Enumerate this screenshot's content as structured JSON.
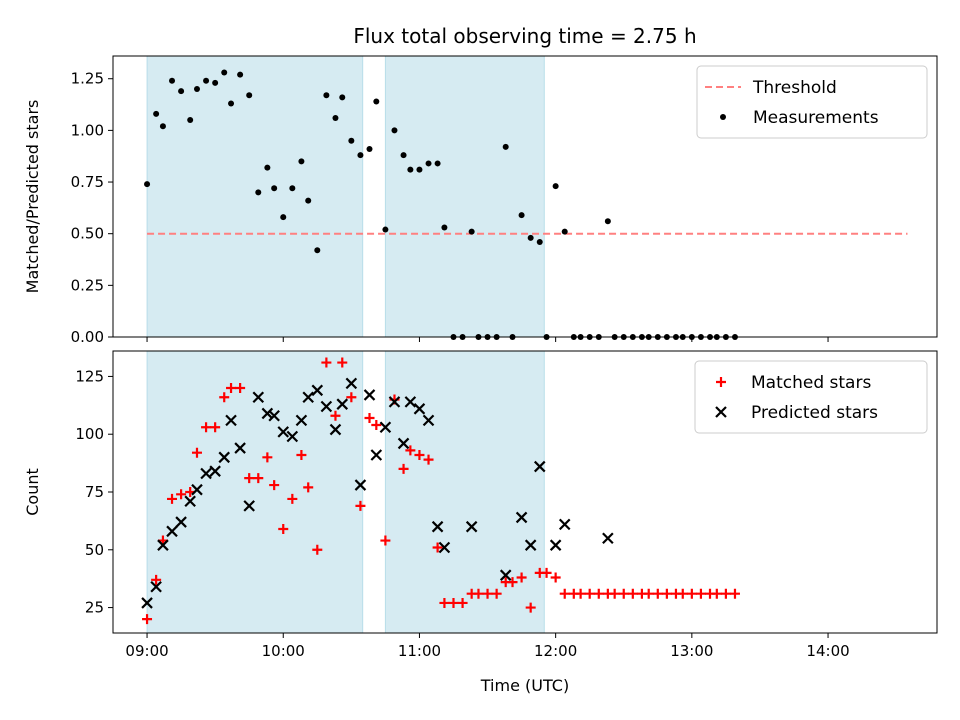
{
  "chart_data": [
    {
      "type": "scatter",
      "title": "Flux total observing time = 2.75 h",
      "xlabel": "",
      "ylabel": "Matched/Predicted stars",
      "xlim": [
        "08:45",
        "14:48"
      ],
      "ylim": [
        0.0,
        1.36
      ],
      "yticks": [
        0.0,
        0.25,
        0.5,
        0.75,
        1.0,
        1.25
      ],
      "ytick_labels": [
        "0.00",
        "0.25",
        "0.50",
        "0.75",
        "1.00",
        "1.25"
      ],
      "xticks": [
        "09:00",
        "10:00",
        "11:00",
        "12:00",
        "13:00",
        "14:00"
      ],
      "show_xtick_labels": false,
      "legend_position": "top-right",
      "shaded_intervals": [
        [
          "09:00",
          "10:35"
        ],
        [
          "10:45",
          "11:55"
        ]
      ],
      "colors": {
        "shade": "#add8e6",
        "threshold": "#ff8080",
        "measurements": "#000000"
      },
      "threshold": {
        "name": "Threshold",
        "value": 0.5,
        "x_range": [
          "09:00",
          "14:35"
        ]
      },
      "series": [
        {
          "name": "Measurements",
          "marker": "dot",
          "points": [
            [
              "09:00",
              0.74
            ],
            [
              "09:04",
              1.08
            ],
            [
              "09:07",
              1.02
            ],
            [
              "09:11",
              1.24
            ],
            [
              "09:15",
              1.19
            ],
            [
              "09:19",
              1.05
            ],
            [
              "09:22",
              1.2
            ],
            [
              "09:26",
              1.24
            ],
            [
              "09:30",
              1.23
            ],
            [
              "09:34",
              1.28
            ],
            [
              "09:37",
              1.13
            ],
            [
              "09:41",
              1.27
            ],
            [
              "09:45",
              1.17
            ],
            [
              "09:49",
              0.7
            ],
            [
              "09:53",
              0.82
            ],
            [
              "09:56",
              0.72
            ],
            [
              "10:00",
              0.58
            ],
            [
              "10:04",
              0.72
            ],
            [
              "10:08",
              0.85
            ],
            [
              "10:11",
              0.66
            ],
            [
              "10:15",
              0.42
            ],
            [
              "10:19",
              1.17
            ],
            [
              "10:23",
              1.06
            ],
            [
              "10:26",
              1.16
            ],
            [
              "10:30",
              0.95
            ],
            [
              "10:34",
              0.88
            ],
            [
              "10:38",
              0.91
            ],
            [
              "10:41",
              1.14
            ],
            [
              "10:45",
              0.52
            ],
            [
              "10:49",
              1.0
            ],
            [
              "10:53",
              0.88
            ],
            [
              "10:56",
              0.81
            ],
            [
              "11:00",
              0.81
            ],
            [
              "11:04",
              0.84
            ],
            [
              "11:08",
              0.84
            ],
            [
              "11:11",
              0.53
            ],
            [
              "11:15",
              0.0
            ],
            [
              "11:19",
              0.0
            ],
            [
              "11:23",
              0.51
            ],
            [
              "11:26",
              0.0
            ],
            [
              "11:30",
              0.0
            ],
            [
              "11:34",
              0.0
            ],
            [
              "11:38",
              0.92
            ],
            [
              "11:41",
              0.0
            ],
            [
              "11:45",
              0.59
            ],
            [
              "11:49",
              0.48
            ],
            [
              "11:53",
              0.46
            ],
            [
              "11:56",
              0.0
            ],
            [
              "12:00",
              0.73
            ],
            [
              "12:04",
              0.51
            ],
            [
              "12:08",
              0.0
            ],
            [
              "12:11",
              0.0
            ],
            [
              "12:15",
              0.0
            ],
            [
              "12:19",
              0.0
            ],
            [
              "12:23",
              0.56
            ],
            [
              "12:26",
              0.0
            ],
            [
              "12:30",
              0.0
            ],
            [
              "12:34",
              0.0
            ],
            [
              "12:38",
              0.0
            ],
            [
              "12:41",
              0.0
            ],
            [
              "12:45",
              0.0
            ],
            [
              "12:49",
              0.0
            ],
            [
              "12:53",
              0.0
            ],
            [
              "12:56",
              0.0
            ],
            [
              "13:00",
              0.0
            ],
            [
              "13:04",
              0.0
            ],
            [
              "13:08",
              0.0
            ],
            [
              "13:11",
              0.0
            ],
            [
              "13:15",
              0.0
            ],
            [
              "13:19",
              0.0
            ]
          ]
        }
      ]
    },
    {
      "type": "scatter",
      "title": "",
      "xlabel": "Time (UTC)",
      "ylabel": "Count",
      "xlim": [
        "08:45",
        "14:48"
      ],
      "ylim": [
        14,
        136
      ],
      "yticks": [
        25,
        50,
        75,
        100,
        125
      ],
      "ytick_labels": [
        "25",
        "50",
        "75",
        "100",
        "125"
      ],
      "xticks": [
        "09:00",
        "10:00",
        "11:00",
        "12:00",
        "13:00",
        "14:00"
      ],
      "xtick_labels": [
        "09:00",
        "10:00",
        "11:00",
        "12:00",
        "13:00",
        "14:00"
      ],
      "show_xtick_labels": true,
      "legend_position": "top-right",
      "shaded_intervals": [
        [
          "09:00",
          "10:35"
        ],
        [
          "10:45",
          "11:55"
        ]
      ],
      "colors": {
        "shade": "#add8e6",
        "matched": "#ff0000",
        "predicted": "#000000"
      },
      "series": [
        {
          "name": "Matched stars",
          "marker": "plus",
          "points": [
            [
              "09:00",
              20
            ],
            [
              "09:04",
              37
            ],
            [
              "09:07",
              54
            ],
            [
              "09:11",
              72
            ],
            [
              "09:15",
              74
            ],
            [
              "09:19",
              75
            ],
            [
              "09:22",
              92
            ],
            [
              "09:26",
              103
            ],
            [
              "09:30",
              103
            ],
            [
              "09:34",
              116
            ],
            [
              "09:37",
              120
            ],
            [
              "09:41",
              120
            ],
            [
              "09:45",
              81
            ],
            [
              "09:49",
              81
            ],
            [
              "09:53",
              90
            ],
            [
              "09:56",
              78
            ],
            [
              "10:00",
              59
            ],
            [
              "10:04",
              72
            ],
            [
              "10:08",
              91
            ],
            [
              "10:11",
              77
            ],
            [
              "10:15",
              50
            ],
            [
              "10:19",
              131
            ],
            [
              "10:23",
              108
            ],
            [
              "10:26",
              131
            ],
            [
              "10:30",
              116
            ],
            [
              "10:34",
              69
            ],
            [
              "10:38",
              107
            ],
            [
              "10:41",
              104
            ],
            [
              "10:45",
              54
            ],
            [
              "10:49",
              115
            ],
            [
              "10:53",
              85
            ],
            [
              "10:56",
              93
            ],
            [
              "11:00",
              91
            ],
            [
              "11:04",
              89
            ],
            [
              "11:08",
              51
            ],
            [
              "11:11",
              27
            ],
            [
              "11:15",
              27
            ],
            [
              "11:19",
              27
            ],
            [
              "11:23",
              31
            ],
            [
              "11:26",
              31
            ],
            [
              "11:30",
              31
            ],
            [
              "11:34",
              31
            ],
            [
              "11:38",
              36
            ],
            [
              "11:41",
              36
            ],
            [
              "11:45",
              38
            ],
            [
              "11:49",
              25
            ],
            [
              "11:53",
              40
            ],
            [
              "11:56",
              40
            ],
            [
              "12:00",
              38
            ],
            [
              "12:04",
              31
            ],
            [
              "12:08",
              31
            ],
            [
              "12:11",
              31
            ],
            [
              "12:15",
              31
            ],
            [
              "12:19",
              31
            ],
            [
              "12:23",
              31
            ],
            [
              "12:26",
              31
            ],
            [
              "12:30",
              31
            ],
            [
              "12:34",
              31
            ],
            [
              "12:38",
              31
            ],
            [
              "12:41",
              31
            ],
            [
              "12:45",
              31
            ],
            [
              "12:49",
              31
            ],
            [
              "12:53",
              31
            ],
            [
              "12:56",
              31
            ],
            [
              "13:00",
              31
            ],
            [
              "13:04",
              31
            ],
            [
              "13:08",
              31
            ],
            [
              "13:11",
              31
            ],
            [
              "13:15",
              31
            ],
            [
              "13:19",
              31
            ]
          ]
        },
        {
          "name": "Predicted stars",
          "marker": "x",
          "points": [
            [
              "09:00",
              27
            ],
            [
              "09:04",
              34
            ],
            [
              "09:07",
              52
            ],
            [
              "09:11",
              58
            ],
            [
              "09:15",
              62
            ],
            [
              "09:19",
              71
            ],
            [
              "09:22",
              76
            ],
            [
              "09:26",
              83
            ],
            [
              "09:30",
              84
            ],
            [
              "09:34",
              90
            ],
            [
              "09:37",
              106
            ],
            [
              "09:41",
              94
            ],
            [
              "09:45",
              69
            ],
            [
              "09:49",
              116
            ],
            [
              "09:53",
              109
            ],
            [
              "09:56",
              108
            ],
            [
              "10:00",
              101
            ],
            [
              "10:04",
              99
            ],
            [
              "10:08",
              106
            ],
            [
              "10:11",
              116
            ],
            [
              "10:15",
              119
            ],
            [
              "10:19",
              112
            ],
            [
              "10:23",
              102
            ],
            [
              "10:26",
              113
            ],
            [
              "10:30",
              122
            ],
            [
              "10:34",
              78
            ],
            [
              "10:38",
              117
            ],
            [
              "10:41",
              91
            ],
            [
              "10:45",
              103
            ],
            [
              "10:49",
              114
            ],
            [
              "10:53",
              96
            ],
            [
              "10:56",
              114
            ],
            [
              "11:00",
              111
            ],
            [
              "11:04",
              106
            ],
            [
              "11:08",
              60
            ],
            [
              "11:11",
              51
            ],
            [
              "11:23",
              60
            ],
            [
              "11:38",
              39
            ],
            [
              "11:45",
              64
            ],
            [
              "11:49",
              52
            ],
            [
              "11:53",
              86
            ],
            [
              "12:00",
              52
            ],
            [
              "12:04",
              61
            ],
            [
              "12:23",
              55
            ]
          ]
        }
      ]
    }
  ]
}
